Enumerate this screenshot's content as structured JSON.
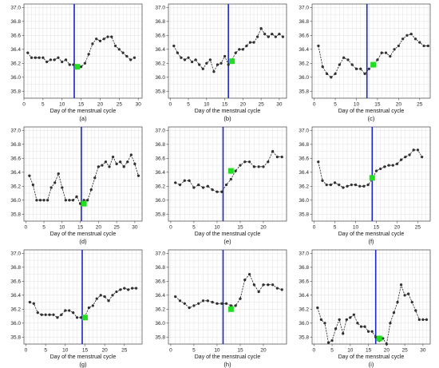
{
  "chart_data": [
    {
      "type": "line",
      "caption": "(a)",
      "xlabel": "Day of the menstrual cycle",
      "ylabel": "",
      "xlim": [
        0,
        31
      ],
      "ylim": [
        35.7,
        37.05
      ],
      "x_ticks": [
        0,
        5,
        10,
        15,
        20,
        25,
        30
      ],
      "y_ticks": [
        35.8,
        36.0,
        36.2,
        36.4,
        36.6,
        36.8,
        37.0
      ],
      "x": [
        1,
        2,
        3,
        4,
        5,
        6,
        7,
        8,
        9,
        10,
        11,
        12,
        13,
        14,
        15,
        16,
        17,
        18,
        19,
        20,
        21,
        22,
        23,
        24,
        25,
        26,
        27,
        28,
        29
      ],
      "y": [
        36.35,
        36.28,
        36.28,
        36.28,
        36.28,
        36.22,
        36.25,
        36.25,
        36.28,
        36.22,
        36.25,
        36.18,
        36.18,
        36.15,
        36.15,
        36.2,
        36.33,
        36.48,
        36.55,
        36.52,
        36.55,
        36.58,
        36.58,
        36.45,
        36.4,
        36.35,
        36.3,
        36.25,
        36.28
      ],
      "vline_x": 13.2,
      "marker": {
        "x": 14,
        "y": 36.15
      }
    },
    {
      "type": "line",
      "caption": "(b)",
      "xlabel": "Day of the menstrual cycle",
      "ylabel": "",
      "xlim": [
        -0.5,
        32
      ],
      "ylim": [
        35.7,
        37.05
      ],
      "x_ticks": [
        0,
        5,
        10,
        15,
        20,
        25,
        30
      ],
      "y_ticks": [
        35.8,
        36.0,
        36.2,
        36.4,
        36.6,
        36.8,
        37.0
      ],
      "x": [
        1,
        2,
        3,
        4,
        5,
        6,
        7,
        8,
        9,
        10,
        11,
        12,
        13,
        14,
        15,
        16,
        17,
        18,
        19,
        20,
        21,
        22,
        23,
        24,
        25,
        26,
        27,
        28,
        29,
        30,
        31
      ],
      "y": [
        36.45,
        36.35,
        36.28,
        36.25,
        36.28,
        36.22,
        36.25,
        36.18,
        36.12,
        36.2,
        36.25,
        36.08,
        36.18,
        36.2,
        36.3,
        36.18,
        36.25,
        36.35,
        36.4,
        36.4,
        36.45,
        36.5,
        36.5,
        36.58,
        36.7,
        36.62,
        36.58,
        36.62,
        36.58,
        36.62,
        36.58
      ],
      "vline_x": 16,
      "marker": {
        "x": 17,
        "y": 36.23
      }
    },
    {
      "type": "line",
      "caption": "(c)",
      "xlabel": "Day of the menstrual cycle",
      "ylabel": "",
      "xlim": [
        -0.5,
        27.5
      ],
      "ylim": [
        35.7,
        37.05
      ],
      "x_ticks": [
        0,
        5,
        10,
        15,
        20,
        25
      ],
      "y_ticks": [
        35.8,
        36.0,
        36.2,
        36.4,
        36.6,
        36.8,
        37.0
      ],
      "x": [
        1,
        2,
        3,
        4,
        5,
        6,
        7,
        8,
        9,
        10,
        11,
        12,
        13,
        14,
        15,
        16,
        17,
        18,
        19,
        20,
        21,
        22,
        23,
        24,
        25,
        26,
        27
      ],
      "y": [
        36.45,
        36.15,
        36.05,
        36.0,
        36.05,
        36.18,
        36.28,
        36.25,
        36.18,
        36.12,
        36.12,
        36.05,
        36.12,
        36.18,
        36.25,
        36.35,
        36.35,
        36.3,
        36.4,
        36.45,
        36.55,
        36.6,
        36.62,
        36.55,
        36.5,
        36.45,
        36.45
      ],
      "vline_x": 12.5,
      "marker": {
        "x": 14,
        "y": 36.18
      }
    },
    {
      "type": "line",
      "caption": "(d)",
      "xlabel": "Day of the menstrual cycle",
      "ylabel": "",
      "xlim": [
        -0.5,
        32
      ],
      "ylim": [
        35.7,
        37.05
      ],
      "x_ticks": [
        0,
        5,
        10,
        15,
        20,
        25,
        30
      ],
      "y_ticks": [
        35.8,
        36.0,
        36.2,
        36.4,
        36.6,
        36.8,
        37.0
      ],
      "x": [
        1,
        2,
        3,
        4,
        5,
        6,
        7,
        8,
        9,
        10,
        11,
        12,
        13,
        14,
        15,
        16,
        17,
        18,
        19,
        20,
        21,
        22,
        23,
        24,
        25,
        26,
        27,
        28,
        29,
        30,
        31
      ],
      "y": [
        36.35,
        36.22,
        36.0,
        36.0,
        36.0,
        36.0,
        36.18,
        36.25,
        36.38,
        36.18,
        36.0,
        36.0,
        36.0,
        36.05,
        35.95,
        36.0,
        36.0,
        36.15,
        36.32,
        36.48,
        36.5,
        36.55,
        36.48,
        36.62,
        36.52,
        36.55,
        36.48,
        36.55,
        36.65,
        36.52,
        36.35
      ],
      "vline_x": 15.3,
      "marker": {
        "x": 16,
        "y": 35.95
      }
    },
    {
      "type": "line",
      "caption": "(e)",
      "xlabel": "Day of the menstrual cycle",
      "ylabel": "",
      "xlim": [
        -0.5,
        25
      ],
      "ylim": [
        35.7,
        37.05
      ],
      "x_ticks": [
        0,
        5,
        10,
        15,
        20
      ],
      "y_ticks": [
        35.8,
        36.0,
        36.2,
        36.4,
        36.6,
        36.8,
        37.0
      ],
      "x": [
        1,
        2,
        3,
        4,
        5,
        6,
        7,
        8,
        9,
        10,
        11,
        12,
        13,
        14,
        15,
        16,
        17,
        18,
        19,
        20,
        21,
        22,
        23,
        24
      ],
      "y": [
        36.25,
        36.22,
        36.28,
        36.28,
        36.18,
        36.22,
        36.18,
        36.2,
        36.15,
        36.12,
        36.12,
        36.22,
        36.3,
        36.42,
        36.5,
        36.55,
        36.55,
        36.48,
        36.48,
        36.48,
        36.55,
        36.7,
        36.62,
        36.62
      ],
      "vline_x": 11.3,
      "marker": {
        "x": 13,
        "y": 36.42
      }
    },
    {
      "type": "line",
      "caption": "(f)",
      "xlabel": "Day of the menstrual cycle",
      "ylabel": "",
      "xlim": [
        -0.5,
        28
      ],
      "ylim": [
        35.7,
        37.05
      ],
      "x_ticks": [
        0,
        5,
        10,
        15,
        20,
        25
      ],
      "y_ticks": [
        35.8,
        36.0,
        36.2,
        36.4,
        36.6,
        36.8,
        37.0
      ],
      "x": [
        1,
        2,
        3,
        4,
        5,
        6,
        7,
        8,
        9,
        10,
        11,
        12,
        13,
        14,
        15,
        16,
        17,
        18,
        19,
        20,
        21,
        22,
        23,
        24,
        25,
        26
      ],
      "y": [
        36.55,
        36.28,
        36.22,
        36.22,
        36.25,
        36.22,
        36.18,
        36.2,
        36.22,
        36.22,
        36.2,
        36.2,
        36.22,
        36.3,
        36.42,
        36.45,
        36.48,
        36.5,
        36.5,
        36.52,
        36.58,
        36.62,
        36.65,
        36.72,
        36.72,
        36.62
      ],
      "vline_x": 14,
      "marker": {
        "x": 14,
        "y": 36.32
      }
    },
    {
      "type": "line",
      "caption": "(g)",
      "xlabel": "Day of the menstrual cycle",
      "ylabel": "",
      "xlim": [
        -0.5,
        29.5
      ],
      "ylim": [
        35.7,
        37.05
      ],
      "x_ticks": [
        0,
        5,
        10,
        15,
        20,
        25
      ],
      "y_ticks": [
        35.8,
        36.0,
        36.2,
        36.4,
        36.6,
        36.8,
        37.0
      ],
      "x": [
        1,
        2,
        3,
        4,
        5,
        6,
        7,
        8,
        9,
        10,
        11,
        12,
        13,
        14,
        15,
        16,
        17,
        18,
        19,
        20,
        21,
        22,
        23,
        24,
        25,
        26,
        27,
        28
      ],
      "y": [
        36.3,
        36.28,
        36.15,
        36.12,
        36.12,
        36.12,
        36.12,
        36.08,
        36.12,
        36.18,
        36.18,
        36.15,
        36.08,
        36.08,
        36.1,
        36.22,
        36.25,
        36.35,
        36.4,
        36.38,
        36.32,
        36.4,
        36.45,
        36.48,
        36.5,
        36.48,
        36.5,
        36.5
      ],
      "vline_x": 14.3,
      "marker": {
        "x": 15,
        "y": 36.08
      }
    },
    {
      "type": "line",
      "caption": "(h)",
      "xlabel": "Day of the menstrual cycle",
      "ylabel": "",
      "xlim": [
        -0.5,
        25
      ],
      "ylim": [
        35.7,
        37.05
      ],
      "x_ticks": [
        0,
        5,
        10,
        15,
        20
      ],
      "y_ticks": [
        35.8,
        36.0,
        36.2,
        36.4,
        36.6,
        36.8,
        37.0
      ],
      "x": [
        1,
        2,
        3,
        4,
        5,
        6,
        7,
        8,
        9,
        10,
        11,
        12,
        13,
        14,
        15,
        16,
        17,
        18,
        19,
        20,
        21,
        22,
        23,
        24
      ],
      "y": [
        36.38,
        36.32,
        36.28,
        36.22,
        36.25,
        36.28,
        36.32,
        36.32,
        36.3,
        36.28,
        36.28,
        36.28,
        36.25,
        36.25,
        36.35,
        36.62,
        36.7,
        36.55,
        36.45,
        36.55,
        36.55,
        36.55,
        36.5,
        36.48
      ],
      "vline_x": 11.3,
      "marker": {
        "x": 13,
        "y": 36.2
      }
    },
    {
      "type": "line",
      "caption": "(i)",
      "xlabel": "Day of the menstrual cycle",
      "ylabel": "",
      "xlim": [
        -0.5,
        32
      ],
      "ylim": [
        35.7,
        37.05
      ],
      "x_ticks": [
        0,
        5,
        10,
        15,
        20,
        25,
        30
      ],
      "y_ticks": [
        35.8,
        36.0,
        36.2,
        36.4,
        36.6,
        36.8,
        37.0
      ],
      "x": [
        1,
        2,
        3,
        4,
        5,
        6,
        7,
        8,
        9,
        10,
        11,
        12,
        13,
        14,
        15,
        16,
        17,
        18,
        19,
        20,
        21,
        22,
        23,
        24,
        25,
        26,
        27,
        28,
        29,
        30,
        31
      ],
      "y": [
        36.22,
        36.05,
        36.0,
        35.72,
        35.75,
        35.92,
        36.05,
        35.85,
        36.05,
        36.08,
        36.12,
        36.0,
        35.95,
        35.95,
        35.88,
        35.88,
        35.8,
        35.75,
        35.78,
        35.7,
        36.0,
        36.15,
        36.3,
        36.55,
        36.4,
        36.42,
        36.3,
        36.18,
        36.05,
        36.05,
        36.05
      ],
      "vline_x": 17,
      "marker": {
        "x": 18,
        "y": 35.78
      }
    }
  ]
}
